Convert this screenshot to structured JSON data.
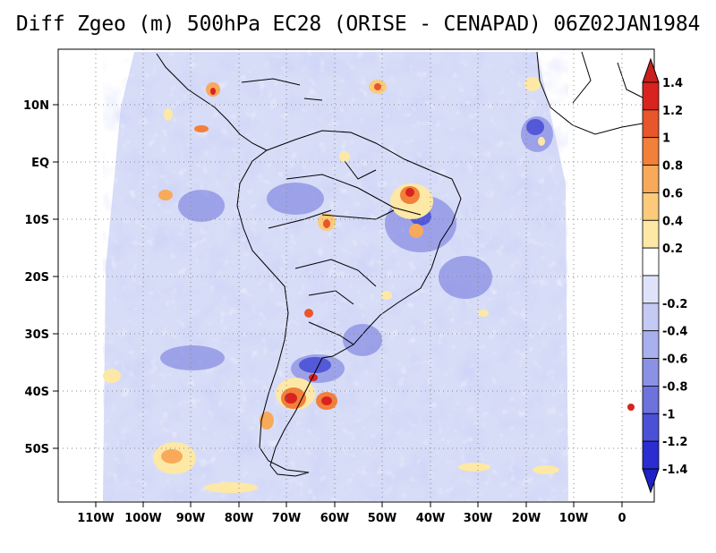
{
  "title": "Diff Zgeo (m) 500hPa EC28 (ORISE - CENAPAD) 06Z02JAN1984",
  "map": {
    "lat_labels": [
      "10N",
      "EQ",
      "10S",
      "20S",
      "30S",
      "40S",
      "50S"
    ],
    "lon_labels": [
      "110W",
      "100W",
      "90W",
      "80W",
      "70W",
      "60W",
      "50W",
      "40W",
      "30W",
      "20W",
      "10W",
      "0"
    ],
    "colorbar": {
      "labels": [
        "1.4",
        "1.2",
        "1",
        "0.8",
        "0.6",
        "0.4",
        "0.2",
        "-0.2",
        "-0.4",
        "-0.6",
        "-0.8",
        "-1",
        "-1.2",
        "-1.4"
      ],
      "colors": [
        "#d8231f",
        "#e8562b",
        "#f2803a",
        "#f8a95a",
        "#fbcb7b",
        "#fde8a6",
        "#ffffff",
        "#dfe3fa",
        "#c4caf4",
        "#a8b0ee",
        "#8b92e6",
        "#6d72dc",
        "#4b50d6",
        "#2a2ed0"
      ],
      "top_arrow_color": "#c9201c",
      "bottom_arrow_color": "#1e20c8"
    },
    "background_tint": "#d7dcf7"
  }
}
